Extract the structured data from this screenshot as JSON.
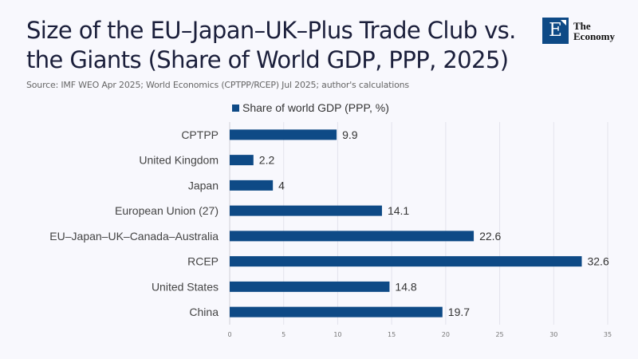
{
  "header": {
    "title": "Size of the EU–Japan–UK–Plus Trade Club vs. the Giants (Share of World GDP, PPP, 2025)",
    "source": "Source: IMF WEO Apr 2025; World Economics (CPTPP/RCEP) Jul 2025; author's calculations"
  },
  "logo": {
    "letter": "E",
    "line1": "The",
    "line2": "Economy",
    "color": "#0e4a86"
  },
  "chart_data": {
    "type": "bar",
    "orientation": "horizontal",
    "title": "Size of the EU–Japan–UK–Plus Trade Club vs. the Giants (Share of World GDP, PPP, 2025)",
    "xlabel": "",
    "ylabel": "",
    "categories": [
      "CPTPP",
      "United Kingdom",
      "Japan",
      "European Union (27)",
      "EU–Japan–UK–Canada–Australia",
      "RCEP",
      "United States",
      "China"
    ],
    "series": [
      {
        "name": "Share of world GDP (PPP, %)",
        "values": [
          9.9,
          2.2,
          4,
          14.1,
          22.6,
          32.6,
          14.8,
          19.7
        ],
        "color": "#0e4a86"
      }
    ],
    "value_labels": [
      "9.9",
      "2.2",
      "4",
      "14.1",
      "22.6",
      "32.6",
      "14.8",
      "19.7"
    ],
    "xlim": [
      0,
      35
    ],
    "xticks": [
      0,
      5,
      10,
      15,
      20,
      25,
      30,
      35
    ],
    "grid": true,
    "legend": "top-center"
  }
}
